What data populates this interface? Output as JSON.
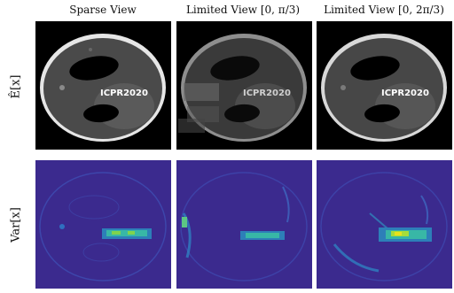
{
  "figure": {
    "column_titles": [
      "Sparse View",
      "Limited View [0, π/3)",
      "Limited View [0, 2π/3)"
    ],
    "row_labels": [
      "Ê[x]",
      "Var[x]"
    ],
    "phantom_text": [
      "ICPR2020",
      "ICPR2020",
      "ICPR2020"
    ],
    "colors": {
      "mean_background": "#000000",
      "variance_background": "#3b2a8e",
      "variance_high": "#e8e21c"
    }
  }
}
